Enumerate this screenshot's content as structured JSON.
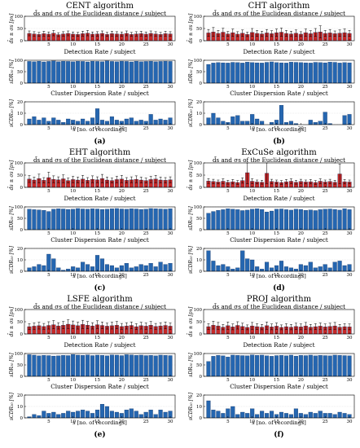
{
  "figure": {
    "xlabel": "s [no. of recordings]",
    "row_titles": {
      "distance": "d̄s and σs of the Euclidean distance / subject",
      "detection": "Detection Rate / subject",
      "dispersion": "Cluster Dispersion Rate / subject"
    },
    "ylabels": {
      "distance": "d̄s ± σs [px]",
      "detection": "sDR₀₀ [%]",
      "dispersion": "sCDR₀₀ [%]"
    },
    "colors": {
      "bar_red": "#c62828",
      "bar_blue": "#2566b0",
      "edge": "#0b2b5a",
      "axis": "#000000",
      "grid": "#d9d9d9"
    }
  },
  "chart_data": [
    {
      "panel": "(a)",
      "title": "CENT algorithm",
      "type": "bar",
      "x": [
        1,
        2,
        3,
        4,
        5,
        6,
        7,
        8,
        9,
        10,
        11,
        12,
        13,
        14,
        15,
        16,
        17,
        18,
        19,
        20,
        21,
        22,
        23,
        24,
        25,
        26,
        27,
        28,
        29,
        30
      ],
      "distance": {
        "ylim": [
          0,
          100
        ],
        "yticks": [
          0,
          50,
          100
        ],
        "values": [
          30,
          28,
          26,
          29,
          27,
          31,
          25,
          28,
          30,
          27,
          26,
          29,
          31,
          27,
          28,
          30,
          26,
          29,
          28,
          27,
          30,
          26,
          28,
          29,
          27,
          30,
          28,
          26,
          29,
          28
        ],
        "errors": [
          10,
          9,
          8,
          10,
          9,
          11,
          8,
          9,
          10,
          9,
          8,
          10,
          11,
          9,
          9,
          10,
          8,
          10,
          9,
          9,
          10,
          8,
          9,
          10,
          9,
          10,
          9,
          8,
          10,
          9
        ]
      },
      "detection": {
        "ylim": [
          0,
          100
        ],
        "yticks": [
          0,
          50,
          100
        ],
        "values": [
          95,
          94,
          96,
          93,
          95,
          97,
          94,
          96,
          95,
          94,
          96,
          95,
          93,
          96,
          95,
          94,
          97,
          95,
          94,
          96,
          95,
          93,
          96,
          94,
          95,
          96,
          94,
          95,
          96,
          95
        ]
      },
      "dispersion": {
        "ylim": [
          0,
          20
        ],
        "yticks": [
          0,
          10,
          20
        ],
        "values": [
          5,
          7,
          4,
          6,
          3,
          6,
          4,
          2,
          5,
          4,
          3,
          5,
          3,
          6,
          14,
          4,
          3,
          7,
          4,
          3,
          5,
          6,
          3,
          4,
          3,
          9,
          4,
          5,
          4,
          6
        ]
      }
    },
    {
      "panel": "(b)",
      "title": "CHT algorithm",
      "type": "bar",
      "x": [
        1,
        2,
        3,
        4,
        5,
        6,
        7,
        8,
        9,
        10,
        11,
        12,
        13,
        14,
        15,
        16,
        17,
        18,
        19,
        20,
        21,
        22,
        23,
        24,
        25,
        26,
        27,
        28,
        29,
        30
      ],
      "distance": {
        "ylim": [
          0,
          100
        ],
        "yticks": [
          0,
          50,
          100
        ],
        "values": [
          32,
          36,
          30,
          35,
          28,
          33,
          27,
          31,
          26,
          34,
          30,
          28,
          32,
          29,
          33,
          35,
          30,
          28,
          31,
          27,
          33,
          29,
          34,
          36,
          30,
          32,
          29,
          31,
          33,
          30
        ],
        "errors": [
          14,
          18,
          12,
          16,
          10,
          15,
          10,
          13,
          9,
          16,
          12,
          11,
          14,
          12,
          15,
          17,
          12,
          11,
          13,
          10,
          15,
          12,
          16,
          25,
          12,
          14,
          11,
          13,
          15,
          12
        ]
      },
      "detection": {
        "ylim": [
          0,
          100
        ],
        "yticks": [
          0,
          50,
          100
        ],
        "values": [
          82,
          88,
          90,
          89,
          88,
          91,
          90,
          88,
          92,
          90,
          89,
          88,
          91,
          93,
          90,
          89,
          88,
          92,
          91,
          90,
          89,
          88,
          91,
          90,
          89,
          92,
          91,
          88,
          90,
          89
        ]
      },
      "dispersion": {
        "ylim": [
          0,
          20
        ],
        "yticks": [
          0,
          10,
          20
        ],
        "values": [
          6,
          10,
          6,
          3,
          2,
          7,
          8,
          3,
          3,
          9,
          5,
          3,
          0,
          2,
          4,
          17,
          2,
          3,
          1,
          0,
          0,
          4,
          2,
          3,
          11,
          1,
          0,
          0,
          8,
          9
        ]
      }
    },
    {
      "panel": "(c)",
      "title": "EHT algorithm",
      "type": "bar",
      "x": [
        1,
        2,
        3,
        4,
        5,
        6,
        7,
        8,
        9,
        10,
        11,
        12,
        13,
        14,
        15,
        16,
        17,
        18,
        19,
        20,
        21,
        22,
        23,
        24,
        25,
        26,
        27,
        28,
        29,
        30
      ],
      "distance": {
        "ylim": [
          0,
          100
        ],
        "yticks": [
          0,
          50,
          100
        ],
        "values": [
          34,
          30,
          36,
          29,
          40,
          33,
          31,
          35,
          28,
          32,
          30,
          34,
          29,
          33,
          31,
          36,
          30,
          28,
          32,
          34,
          29,
          31,
          33,
          30,
          28,
          32,
          34,
          30,
          29,
          31
        ],
        "errors": [
          14,
          12,
          18,
          11,
          22,
          14,
          12,
          16,
          10,
          13,
          12,
          15,
          11,
          14,
          12,
          17,
          12,
          10,
          13,
          15,
          11,
          12,
          14,
          12,
          10,
          13,
          15,
          12,
          11,
          12
        ]
      },
      "detection": {
        "ylim": [
          0,
          100
        ],
        "yticks": [
          0,
          50,
          100
        ],
        "values": [
          90,
          88,
          87,
          85,
          80,
          90,
          92,
          91,
          89,
          90,
          93,
          91,
          90,
          92,
          91,
          89,
          90,
          92,
          93,
          91,
          90,
          92,
          91,
          89,
          90,
          93,
          92,
          91,
          90,
          92
        ]
      },
      "dispersion": {
        "ylim": [
          0,
          20
        ],
        "yticks": [
          0,
          10,
          20
        ],
        "values": [
          3,
          4,
          6,
          5,
          15,
          11,
          3,
          1,
          2,
          4,
          3,
          8,
          6,
          4,
          14,
          11,
          6,
          5,
          3,
          5,
          7,
          3,
          4,
          6,
          5,
          7,
          4,
          8,
          6,
          7
        ]
      }
    },
    {
      "panel": "(d)",
      "title": "ExCuSe algorithm",
      "type": "bar",
      "x": [
        1,
        2,
        3,
        4,
        5,
        6,
        7,
        8,
        9,
        10,
        11,
        12,
        13,
        14,
        15,
        16,
        17,
        18,
        19,
        20,
        21,
        22,
        23,
        24,
        25,
        26,
        27,
        28,
        29,
        30
      ],
      "distance": {
        "ylim": [
          0,
          100
        ],
        "yticks": [
          0,
          50,
          100
        ],
        "values": [
          26,
          24,
          22,
          25,
          21,
          23,
          20,
          28,
          60,
          25,
          22,
          21,
          58,
          24,
          22,
          20,
          23,
          25,
          21,
          24,
          22,
          23,
          20,
          25,
          22,
          24,
          21,
          55,
          23,
          22
        ],
        "errors": [
          10,
          9,
          8,
          10,
          8,
          9,
          8,
          11,
          45,
          10,
          8,
          8,
          42,
          9,
          8,
          8,
          9,
          10,
          8,
          9,
          8,
          9,
          8,
          10,
          8,
          9,
          8,
          40,
          9,
          8
        ]
      },
      "detection": {
        "ylim": [
          0,
          100
        ],
        "yticks": [
          0,
          50,
          100
        ],
        "values": [
          72,
          80,
          85,
          88,
          92,
          90,
          88,
          84,
          86,
          90,
          92,
          89,
          78,
          82,
          90,
          91,
          88,
          86,
          90,
          89,
          85,
          87,
          84,
          88,
          90,
          91,
          89,
          86,
          92,
          88
        ]
      },
      "dispersion": {
        "ylim": [
          0,
          20
        ],
        "yticks": [
          0,
          10,
          20
        ],
        "values": [
          18,
          9,
          5,
          6,
          4,
          2,
          3,
          18,
          11,
          10,
          4,
          2,
          8,
          3,
          5,
          9,
          4,
          3,
          2,
          6,
          5,
          8,
          3,
          4,
          6,
          3,
          8,
          9,
          5,
          6
        ]
      }
    },
    {
      "panel": "(e)",
      "title": "LSFE algorithm",
      "type": "bar",
      "x": [
        1,
        2,
        3,
        4,
        5,
        6,
        7,
        8,
        9,
        10,
        11,
        12,
        13,
        14,
        15,
        16,
        17,
        18,
        19,
        20,
        21,
        22,
        23,
        24,
        25,
        26,
        27,
        28,
        29,
        30
      ],
      "distance": {
        "ylim": [
          0,
          100
        ],
        "yticks": [
          0,
          50,
          100
        ],
        "values": [
          30,
          32,
          34,
          31,
          35,
          38,
          33,
          36,
          40,
          37,
          34,
          39,
          36,
          33,
          38,
          35,
          32,
          34,
          36,
          31,
          33,
          35,
          30,
          34,
          32,
          36,
          31,
          33,
          35,
          32
        ],
        "errors": [
          12,
          13,
          14,
          12,
          15,
          17,
          13,
          15,
          18,
          16,
          14,
          17,
          15,
          13,
          16,
          14,
          12,
          14,
          15,
          12,
          13,
          14,
          12,
          14,
          13,
          15,
          12,
          13,
          14,
          13
        ]
      },
      "detection": {
        "ylim": [
          0,
          100
        ],
        "yticks": [
          0,
          50,
          100
        ],
        "values": [
          95,
          93,
          90,
          92,
          91,
          89,
          90,
          92,
          91,
          96,
          93,
          92,
          94,
          91,
          93,
          92,
          90,
          94,
          93,
          91,
          95,
          94,
          92,
          93,
          91,
          92,
          90,
          93,
          92,
          91
        ]
      },
      "dispersion": {
        "ylim": [
          0,
          20
        ],
        "yticks": [
          0,
          10,
          20
        ],
        "values": [
          1,
          3,
          2,
          6,
          4,
          5,
          3,
          4,
          6,
          5,
          6,
          7,
          6,
          4,
          7,
          12,
          10,
          6,
          5,
          4,
          7,
          8,
          6,
          3,
          5,
          7,
          3,
          7,
          5,
          6
        ]
      }
    },
    {
      "panel": "(f)",
      "title": "PROJ algorithm",
      "type": "bar",
      "x": [
        1,
        2,
        3,
        4,
        5,
        6,
        7,
        8,
        9,
        10,
        11,
        12,
        13,
        14,
        15,
        16,
        17,
        18,
        19,
        20,
        21,
        22,
        23,
        24,
        25,
        26,
        27,
        28,
        29,
        30
      ],
      "distance": {
        "ylim": [
          0,
          100
        ],
        "yticks": [
          0,
          50,
          100
        ],
        "values": [
          30,
          36,
          33,
          28,
          34,
          29,
          35,
          31,
          27,
          33,
          30,
          28,
          34,
          29,
          32,
          27,
          30,
          28,
          31,
          29,
          33,
          28,
          30,
          32,
          29,
          31,
          33,
          28,
          30,
          29
        ],
        "errors": [
          12,
          16,
          14,
          11,
          15,
          12,
          15,
          13,
          10,
          14,
          12,
          11,
          15,
          12,
          13,
          10,
          12,
          11,
          13,
          12,
          14,
          11,
          12,
          13,
          12,
          13,
          14,
          11,
          12,
          12
        ]
      },
      "detection": {
        "ylim": [
          0,
          100
        ],
        "yticks": [
          0,
          50,
          100
        ],
        "values": [
          65,
          88,
          92,
          90,
          85,
          93,
          92,
          91,
          90,
          94,
          92,
          93,
          90,
          88,
          91,
          92,
          90,
          93,
          89,
          92,
          91,
          93,
          90,
          92,
          91,
          90,
          93,
          92,
          91,
          90
        ]
      },
      "dispersion": {
        "ylim": [
          0,
          20
        ],
        "yticks": [
          0,
          10,
          20
        ],
        "values": [
          15,
          7,
          6,
          4,
          8,
          10,
          3,
          5,
          4,
          8,
          3,
          6,
          4,
          6,
          3,
          5,
          4,
          3,
          8,
          4,
          3,
          5,
          4,
          6,
          4,
          4,
          3,
          5,
          4,
          3
        ]
      }
    }
  ]
}
